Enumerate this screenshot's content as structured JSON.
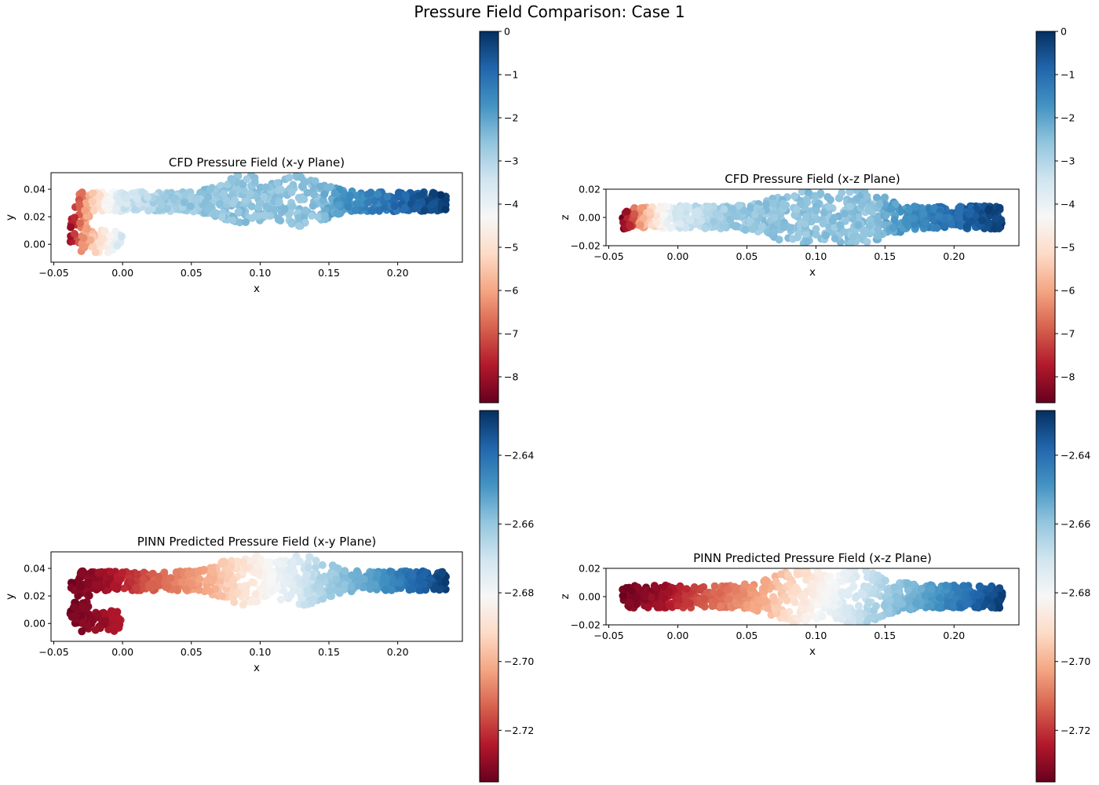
{
  "figure": {
    "title": "Pressure Field Comparison: Case 1",
    "colormap": [
      "#67001f",
      "#b2182b",
      "#d6604d",
      "#f4a582",
      "#fddbc7",
      "#f7f7f7",
      "#d1e5f0",
      "#92c5de",
      "#4393c3",
      "#2166ac",
      "#053061"
    ]
  },
  "chart_data": [
    {
      "type": "scatter",
      "title": "CFD Pressure Field (x-y Plane)",
      "xlabel": "x",
      "ylabel": "y",
      "xlim": [
        -0.052,
        0.247
      ],
      "ylim": [
        -0.013,
        0.052
      ],
      "xticks": [
        -0.05,
        0.0,
        0.05,
        0.1,
        0.15,
        0.2
      ],
      "xticklabels": [
        "−0.05",
        "0.00",
        "0.05",
        "0.10",
        "0.15",
        "0.20"
      ],
      "yticks": [
        0.0,
        0.02,
        0.04
      ],
      "yticklabels": [
        "0.00",
        "0.02",
        "0.04"
      ],
      "plane": "xy",
      "field": "cfd",
      "sample_count": 900,
      "colorbar": {
        "range": [
          -8.6,
          0.0
        ],
        "ticks": [
          0,
          -1,
          -2,
          -3,
          -4,
          -5,
          -6,
          -7,
          -8
        ],
        "ticklabels": [
          "0",
          "−1",
          "−2",
          "−3",
          "−4",
          "−5",
          "−6",
          "−7",
          "−8"
        ]
      },
      "field_profile": {
        "x": [
          -0.04,
          -0.03,
          -0.015,
          0.0,
          0.03,
          0.06,
          0.1,
          0.14,
          0.16,
          0.2,
          0.235
        ],
        "p": [
          -8.4,
          -6.5,
          -4.8,
          -3.5,
          -2.8,
          -2.6,
          -2.55,
          -2.55,
          -1.8,
          -1.0,
          -0.2
        ]
      }
    },
    {
      "type": "scatter",
      "title": "CFD Pressure Field (x-z Plane)",
      "xlabel": "x",
      "ylabel": "z",
      "xlim": [
        -0.052,
        0.247
      ],
      "ylim": [
        -0.02,
        0.02
      ],
      "xticks": [
        -0.05,
        0.0,
        0.05,
        0.1,
        0.15,
        0.2
      ],
      "xticklabels": [
        "−0.05",
        "0.00",
        "0.05",
        "0.10",
        "0.15",
        "0.20"
      ],
      "yticks": [
        -0.02,
        0.0,
        0.02
      ],
      "yticklabels": [
        "−0.02",
        "0.00",
        "0.02"
      ],
      "plane": "xz",
      "field": "cfd",
      "sample_count": 900,
      "colorbar": {
        "range": [
          -8.6,
          0.0
        ],
        "ticks": [
          0,
          -1,
          -2,
          -3,
          -4,
          -5,
          -6,
          -7,
          -8
        ],
        "ticklabels": [
          "0",
          "−1",
          "−2",
          "−3",
          "−4",
          "−5",
          "−6",
          "−7",
          "−8"
        ]
      },
      "field_profile": {
        "x": [
          -0.04,
          -0.03,
          -0.015,
          0.0,
          0.03,
          0.06,
          0.1,
          0.14,
          0.16,
          0.2,
          0.235
        ],
        "p": [
          -8.4,
          -6.5,
          -4.8,
          -3.5,
          -2.8,
          -2.6,
          -2.55,
          -2.55,
          -1.8,
          -1.0,
          -0.2
        ]
      }
    },
    {
      "type": "scatter",
      "title": "PINN Predicted Pressure Field (x-y Plane)",
      "xlabel": "x",
      "ylabel": "y",
      "xlim": [
        -0.052,
        0.247
      ],
      "ylim": [
        -0.013,
        0.052
      ],
      "xticks": [
        -0.05,
        0.0,
        0.05,
        0.1,
        0.15,
        0.2
      ],
      "xticklabels": [
        "−0.05",
        "0.00",
        "0.05",
        "0.10",
        "0.15",
        "0.20"
      ],
      "yticks": [
        0.0,
        0.02,
        0.04
      ],
      "yticklabels": [
        "0.00",
        "0.02",
        "0.04"
      ],
      "plane": "xy",
      "field": "pinn",
      "sample_count": 900,
      "colorbar": {
        "range": [
          -2.735,
          -2.627
        ],
        "ticks": [
          -2.64,
          -2.66,
          -2.68,
          -2.7,
          -2.72
        ],
        "ticklabels": [
          "−2.64",
          "−2.66",
          "−2.68",
          "−2.70",
          "−2.72"
        ]
      },
      "field_profile": {
        "x": [
          -0.04,
          -0.01,
          0.02,
          0.06,
          0.09,
          0.12,
          0.15,
          0.19,
          0.235
        ],
        "p": [
          -2.733,
          -2.727,
          -2.714,
          -2.702,
          -2.688,
          -2.675,
          -2.662,
          -2.648,
          -2.63
        ]
      }
    },
    {
      "type": "scatter",
      "title": "PINN Predicted Pressure Field (x-z Plane)",
      "xlabel": "x",
      "ylabel": "z",
      "xlim": [
        -0.052,
        0.247
      ],
      "ylim": [
        -0.02,
        0.02
      ],
      "xticks": [
        -0.05,
        0.0,
        0.05,
        0.1,
        0.15,
        0.2
      ],
      "xticklabels": [
        "−0.05",
        "0.00",
        "0.05",
        "0.10",
        "0.15",
        "0.20"
      ],
      "yticks": [
        -0.02,
        0.0,
        0.02
      ],
      "yticklabels": [
        "−0.02",
        "0.00",
        "0.02"
      ],
      "plane": "xz",
      "field": "pinn",
      "sample_count": 900,
      "colorbar": {
        "range": [
          -2.735,
          -2.627
        ],
        "ticks": [
          -2.64,
          -2.66,
          -2.68,
          -2.7,
          -2.72
        ],
        "ticklabels": [
          "−2.64",
          "−2.66",
          "−2.68",
          "−2.70",
          "−2.72"
        ]
      },
      "field_profile": {
        "x": [
          -0.04,
          -0.01,
          0.02,
          0.06,
          0.09,
          0.12,
          0.15,
          0.19,
          0.235
        ],
        "p": [
          -2.733,
          -2.727,
          -2.714,
          -2.702,
          -2.688,
          -2.675,
          -2.662,
          -2.648,
          -2.63
        ]
      }
    }
  ]
}
